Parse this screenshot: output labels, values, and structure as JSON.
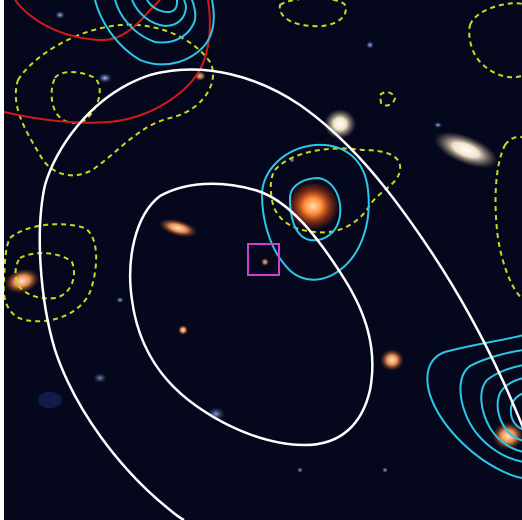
{
  "figure": {
    "kind": "astronomical color cutout with contour overlays",
    "background_color": "#05081c",
    "contour_colors": {
      "white_solid": "#ffffff",
      "cyan_solid": "#2ec6e6",
      "yellow_dashed": "#c8dc1e",
      "red_solid": "#d01a1a"
    },
    "marker": {
      "shape": "square",
      "color": "#d040d0"
    },
    "sources": [
      {
        "name": "bright-red-galaxy-center",
        "color": "#ff7a2a"
      },
      {
        "name": "elliptical-galaxy-top",
        "color": "#fff0d8"
      },
      {
        "name": "edge-on-galaxy-right",
        "color": "#ffe8c8"
      },
      {
        "name": "galaxy-left-edge",
        "color": "#ffb070"
      },
      {
        "name": "galaxy-lower-right",
        "color": "#ffb6a0"
      },
      {
        "name": "galaxy-bottom-right",
        "color": "#ffc07a"
      }
    ]
  }
}
